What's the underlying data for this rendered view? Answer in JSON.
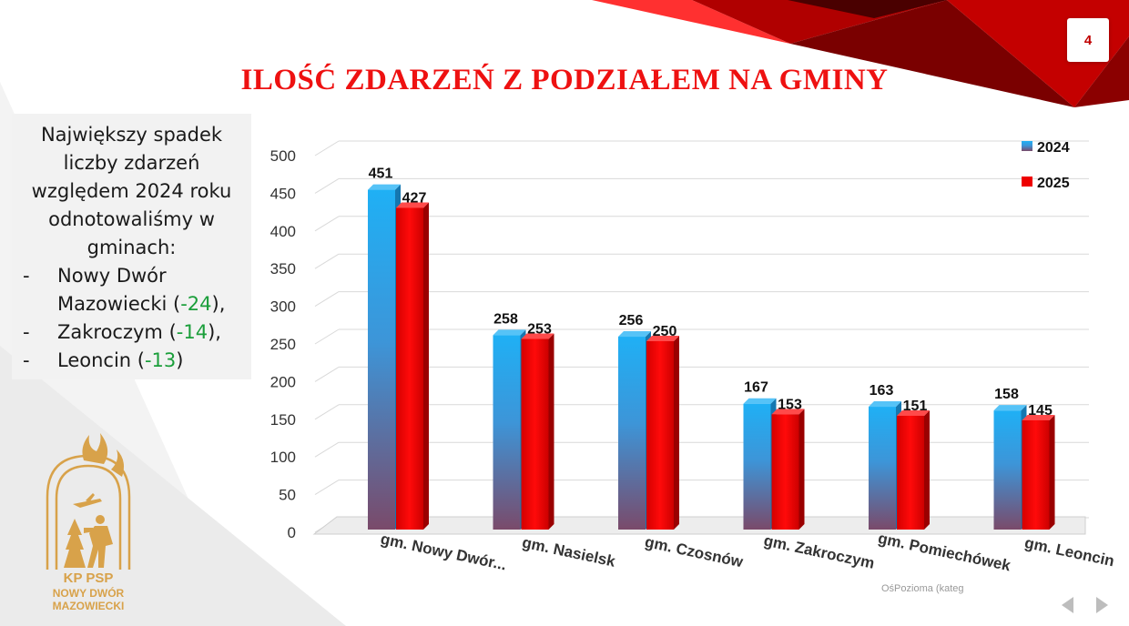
{
  "slide": {
    "page_number": "4",
    "title": "ILOŚĆ ZDARZEŃ Z PODZIAŁEM NA GMINY"
  },
  "info": {
    "heading": "Największy spadek liczby zdarzeń względem 2024 roku odnotowaliśmy w gminach:",
    "items": [
      {
        "bullet": "-",
        "name": "Nowy Dwór Mazowiecki",
        "open": " (",
        "delta": "-24",
        "close": "),"
      },
      {
        "bullet": "-",
        "name": "Zakroczym",
        "open": " (",
        "delta": "-14",
        "close": "),"
      },
      {
        "bullet": "-",
        "name": "Leoncin",
        "open": " (",
        "delta": "-13",
        "close": ")"
      }
    ]
  },
  "axis_tooltip": "OśPozioma (kateg",
  "logo": {
    "line1": "KP PSP",
    "line2": "NOWY DWÓR",
    "line3": "MAZOWIECKI"
  },
  "colors": {
    "title": "#ee1111",
    "series_2024": "#1fa8ee",
    "series_2025": "#ee0000",
    "delta": "#1a9e3a"
  },
  "chart_data": {
    "type": "bar",
    "title": "",
    "xlabel": "",
    "ylabel": "",
    "categories": [
      "gm. Nowy Dwór...",
      "gm. Nasielsk",
      "gm. Czosnów",
      "gm. Zakroczym",
      "gm. Pomiechówek",
      "gm. Leoncin"
    ],
    "series": [
      {
        "name": "2024",
        "values": [
          451,
          258,
          256,
          167,
          163,
          158
        ]
      },
      {
        "name": "2025",
        "values": [
          427,
          253,
          250,
          153,
          151,
          145
        ]
      }
    ],
    "ylim": [
      0,
      500
    ],
    "yticks": [
      0,
      50,
      100,
      150,
      200,
      250,
      300,
      350,
      400,
      450,
      500
    ],
    "grid": true,
    "legend_position": "top-right",
    "data_labels": true
  }
}
